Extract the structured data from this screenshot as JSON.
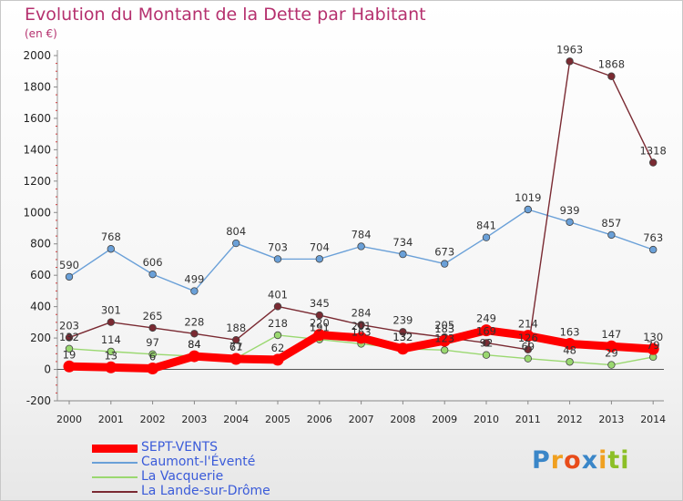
{
  "page": {
    "title": "Evolution du Montant de la Dette par Habitant",
    "unit": "(en €)",
    "logo_text": "Proxiti"
  },
  "chart_data": {
    "type": "line",
    "title": "Evolution du Montant de la Dette par Habitant",
    "subtitle": "(en €)",
    "xlabel": "",
    "ylabel": "",
    "x": [
      "2000",
      "2001",
      "2002",
      "2003",
      "2004",
      "2005",
      "2006",
      "2007",
      "2008",
      "2009",
      "2010",
      "2011",
      "2012",
      "2013",
      "2014"
    ],
    "ylim": [
      -200,
      2000
    ],
    "yticks": [
      -200,
      0,
      200,
      400,
      600,
      800,
      1000,
      1200,
      1400,
      1600,
      1800,
      2000
    ],
    "grid": false,
    "legend_position": "bottom-left",
    "series": [
      {
        "name": "Caumont-l'Éventé",
        "color": "#6aa0d8",
        "values": [
          590,
          768,
          606,
          499,
          804,
          703,
          704,
          784,
          734,
          673,
          841,
          1019,
          939,
          857,
          763
        ]
      },
      {
        "name": "La Vacquerie",
        "color": "#9ad870",
        "values": [
          132,
          114,
          97,
          84,
          71,
          218,
          191,
          163,
          132,
          123,
          92,
          69,
          48,
          29,
          79
        ]
      },
      {
        "name": "La Lande-sur-Drôme",
        "color": "#7a2a32",
        "values": [
          203,
          301,
          265,
          228,
          188,
          401,
          345,
          284,
          239,
          205,
          169,
          126,
          1963,
          1868,
          1318
        ]
      },
      {
        "name": "SEPT-VENTS",
        "color": "#ff0000",
        "values": [
          19,
          13,
          6,
          84,
          67,
          62,
          220,
          201,
          132,
          183,
          249,
          214,
          163,
          147,
          130
        ]
      }
    ]
  }
}
